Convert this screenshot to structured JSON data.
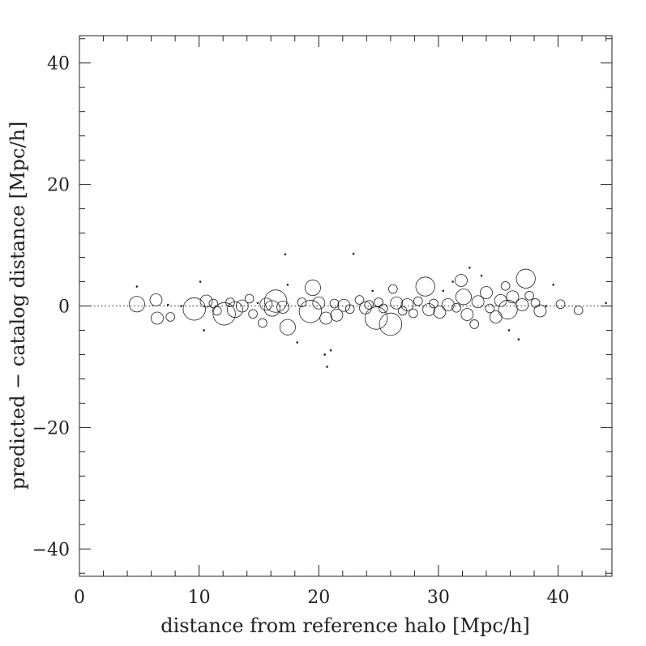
{
  "chart_data": {
    "type": "scatter",
    "xlabel": "distance from reference halo [Mpc/h]",
    "ylabel": "predicted − catalog distance [Mpc/h]",
    "xlim": [
      0,
      44.5
    ],
    "ylim": [
      -44.5,
      44.5
    ],
    "x_ticks": [
      "0",
      "10",
      "20",
      "30",
      "40"
    ],
    "y_ticks": [
      "−40",
      "−20",
      "0",
      "20",
      "40"
    ],
    "grid": false,
    "reference_line": {
      "y": 0,
      "style": "dotted"
    },
    "points": [
      {
        "x": 4.8,
        "y": 0.3,
        "size": 4
      },
      {
        "x": 4.8,
        "y": 3.2,
        "size": 1
      },
      {
        "x": 6.4,
        "y": 1.0,
        "size": 3
      },
      {
        "x": 6.5,
        "y": -2.0,
        "size": 3
      },
      {
        "x": 7.4,
        "y": 0.2,
        "size": 1
      },
      {
        "x": 7.6,
        "y": -1.8,
        "size": 2
      },
      {
        "x": 8.5,
        "y": 0.0,
        "size": 1
      },
      {
        "x": 9.6,
        "y": -0.5,
        "size": 6
      },
      {
        "x": 10.1,
        "y": 4.0,
        "size": 1
      },
      {
        "x": 10.4,
        "y": -4.0,
        "size": 1
      },
      {
        "x": 10.6,
        "y": 0.8,
        "size": 3
      },
      {
        "x": 11.2,
        "y": 0.4,
        "size": 2
      },
      {
        "x": 11.5,
        "y": -0.8,
        "size": 2
      },
      {
        "x": 12.1,
        "y": -1.3,
        "size": 6
      },
      {
        "x": 12.6,
        "y": 0.6,
        "size": 2
      },
      {
        "x": 13.0,
        "y": -0.6,
        "size": 4
      },
      {
        "x": 13.6,
        "y": 0.0,
        "size": 3
      },
      {
        "x": 14.2,
        "y": 1.2,
        "size": 2
      },
      {
        "x": 14.5,
        "y": -1.3,
        "size": 2
      },
      {
        "x": 14.9,
        "y": 0.5,
        "size": 1
      },
      {
        "x": 15.3,
        "y": -2.8,
        "size": 2
      },
      {
        "x": 15.6,
        "y": 0.3,
        "size": 3
      },
      {
        "x": 16.1,
        "y": -0.4,
        "size": 4
      },
      {
        "x": 16.4,
        "y": 0.8,
        "size": 6
      },
      {
        "x": 17.0,
        "y": -0.2,
        "size": 3
      },
      {
        "x": 17.2,
        "y": 8.5,
        "size": 1
      },
      {
        "x": 17.4,
        "y": 3.5,
        "size": 1
      },
      {
        "x": 17.4,
        "y": -3.5,
        "size": 4
      },
      {
        "x": 18.2,
        "y": -6.0,
        "size": 1
      },
      {
        "x": 18.6,
        "y": 0.6,
        "size": 2
      },
      {
        "x": 19.3,
        "y": -0.9,
        "size": 6
      },
      {
        "x": 19.5,
        "y": 3.0,
        "size": 4
      },
      {
        "x": 20.0,
        "y": 0.5,
        "size": 3
      },
      {
        "x": 20.5,
        "y": -8.0,
        "size": 1
      },
      {
        "x": 20.7,
        "y": -10.0,
        "size": 1
      },
      {
        "x": 20.6,
        "y": -2.0,
        "size": 3
      },
      {
        "x": 21.0,
        "y": -7.3,
        "size": 1
      },
      {
        "x": 21.3,
        "y": 0.4,
        "size": 2
      },
      {
        "x": 21.5,
        "y": -1.5,
        "size": 3
      },
      {
        "x": 22.1,
        "y": 0.1,
        "size": 3
      },
      {
        "x": 22.6,
        "y": -0.5,
        "size": 2
      },
      {
        "x": 22.9,
        "y": 8.6,
        "size": 1
      },
      {
        "x": 23.4,
        "y": 1.0,
        "size": 2
      },
      {
        "x": 23.9,
        "y": -0.3,
        "size": 3
      },
      {
        "x": 24.2,
        "y": 0.2,
        "size": 2
      },
      {
        "x": 24.5,
        "y": 2.5,
        "size": 1
      },
      {
        "x": 24.8,
        "y": -2.0,
        "size": 6
      },
      {
        "x": 25.0,
        "y": 0.6,
        "size": 2
      },
      {
        "x": 25.4,
        "y": -0.4,
        "size": 2
      },
      {
        "x": 26.0,
        "y": -3.0,
        "size": 6
      },
      {
        "x": 26.2,
        "y": 2.8,
        "size": 2
      },
      {
        "x": 26.5,
        "y": 0.5,
        "size": 3
      },
      {
        "x": 27.0,
        "y": -0.8,
        "size": 2
      },
      {
        "x": 27.4,
        "y": 0.2,
        "size": 3
      },
      {
        "x": 27.9,
        "y": -1.2,
        "size": 2
      },
      {
        "x": 28.3,
        "y": 0.8,
        "size": 2
      },
      {
        "x": 28.9,
        "y": 3.2,
        "size": 5
      },
      {
        "x": 29.2,
        "y": -0.6,
        "size": 3
      },
      {
        "x": 29.6,
        "y": 0.4,
        "size": 2
      },
      {
        "x": 30.1,
        "y": -1.0,
        "size": 3
      },
      {
        "x": 30.4,
        "y": 2.5,
        "size": 1
      },
      {
        "x": 30.8,
        "y": 0.2,
        "size": 3
      },
      {
        "x": 31.2,
        "y": 4.0,
        "size": 1
      },
      {
        "x": 31.5,
        "y": -0.3,
        "size": 2
      },
      {
        "x": 31.9,
        "y": 4.2,
        "size": 3
      },
      {
        "x": 32.1,
        "y": 1.5,
        "size": 4
      },
      {
        "x": 32.4,
        "y": -1.4,
        "size": 3
      },
      {
        "x": 32.6,
        "y": 6.3,
        "size": 1
      },
      {
        "x": 33.0,
        "y": -3.0,
        "size": 2
      },
      {
        "x": 33.3,
        "y": 0.7,
        "size": 3
      },
      {
        "x": 33.6,
        "y": 5.0,
        "size": 1
      },
      {
        "x": 34.0,
        "y": 2.2,
        "size": 3
      },
      {
        "x": 34.3,
        "y": -0.4,
        "size": 2
      },
      {
        "x": 34.8,
        "y": -1.8,
        "size": 3
      },
      {
        "x": 35.2,
        "y": 0.9,
        "size": 3
      },
      {
        "x": 35.6,
        "y": 3.3,
        "size": 2
      },
      {
        "x": 35.8,
        "y": -0.6,
        "size": 5
      },
      {
        "x": 35.9,
        "y": -4.0,
        "size": 1
      },
      {
        "x": 36.2,
        "y": 1.5,
        "size": 3
      },
      {
        "x": 36.7,
        "y": -5.5,
        "size": 1
      },
      {
        "x": 37.0,
        "y": 0.2,
        "size": 3
      },
      {
        "x": 37.3,
        "y": 4.5,
        "size": 5
      },
      {
        "x": 37.6,
        "y": 1.7,
        "size": 2
      },
      {
        "x": 38.1,
        "y": 0.5,
        "size": 2
      },
      {
        "x": 38.5,
        "y": -0.8,
        "size": 3
      },
      {
        "x": 39.0,
        "y": 0.0,
        "size": 1
      },
      {
        "x": 39.6,
        "y": 3.5,
        "size": 1
      },
      {
        "x": 40.2,
        "y": 0.3,
        "size": 2
      },
      {
        "x": 41.7,
        "y": -0.7,
        "size": 2
      },
      {
        "x": 44.0,
        "y": 0.5,
        "size": 1
      }
    ]
  }
}
